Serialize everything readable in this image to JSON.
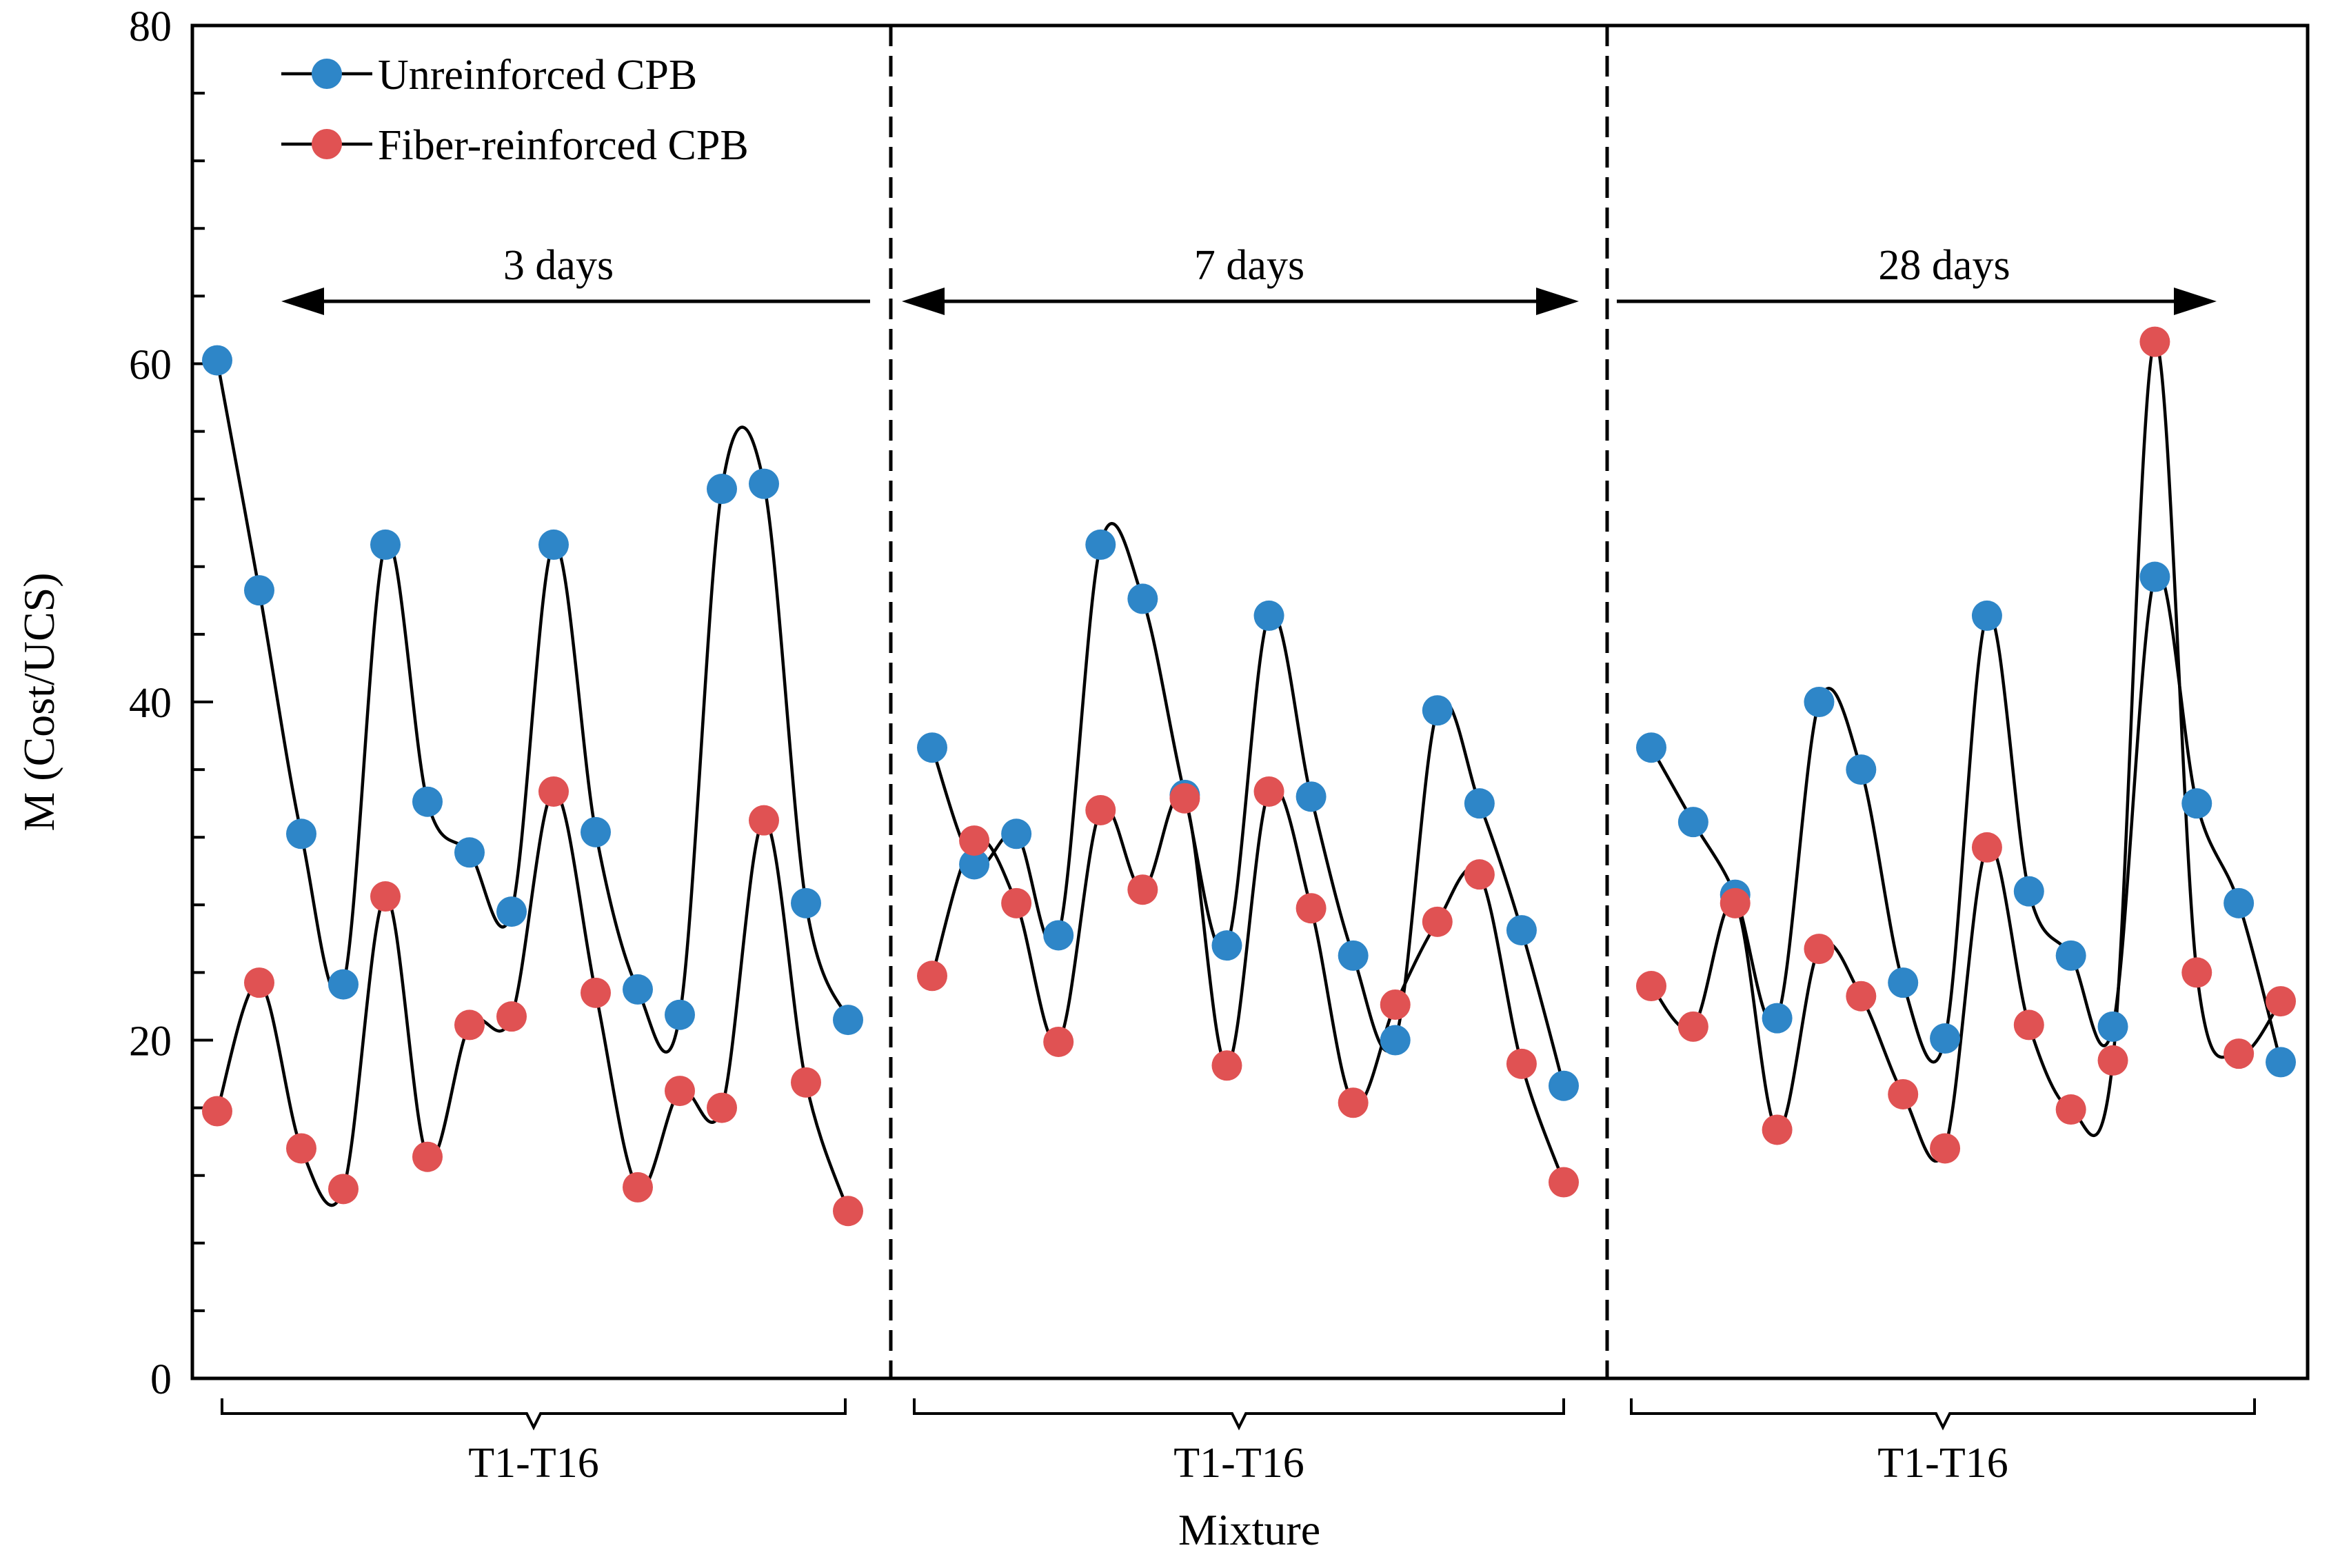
{
  "chart_data": {
    "type": "line",
    "title": "",
    "xlabel": "Mixture",
    "ylabel": "M (Cost/UCS)",
    "ylim": [
      0,
      80
    ],
    "y_ticks": [
      0,
      20,
      40,
      60,
      80
    ],
    "y_minor_step": 4,
    "grid": false,
    "legend_position": "top-left",
    "panels": [
      {
        "label": "3 days",
        "group_label": "T1-T16"
      },
      {
        "label": "7 days",
        "group_label": "T1-T16"
      },
      {
        "label": "28 days",
        "group_label": "T1-T16"
      }
    ],
    "series": [
      {
        "name": "Unreinforced CPB",
        "color": "#2e86c8",
        "values": [
          [
            60.2,
            46.6,
            32.2,
            23.3,
            49.3,
            34.1,
            31.1,
            27.6,
            49.3,
            32.3,
            23.0,
            21.5,
            52.6,
            52.9,
            28.1,
            21.2
          ],
          [
            37.3,
            30.4,
            32.2,
            26.2,
            49.3,
            46.1,
            34.5,
            25.6,
            45.1,
            34.4,
            25.0,
            20.0,
            39.5,
            34.0,
            26.5,
            17.3
          ],
          [
            37.3,
            32.9,
            28.6,
            21.3,
            40.0,
            36.0,
            23.4,
            20.1,
            45.1,
            28.8,
            25.0,
            20.8,
            47.4,
            34.0,
            28.1,
            18.7
          ]
        ]
      },
      {
        "name": "Fiber-reinforced CPB",
        "color": "#e05253",
        "values": [
          [
            15.8,
            23.4,
            13.6,
            11.2,
            28.5,
            13.1,
            20.9,
            21.4,
            34.7,
            22.8,
            11.3,
            17.0,
            16.0,
            33.0,
            17.5,
            9.9
          ],
          [
            23.8,
            31.8,
            28.1,
            19.9,
            33.6,
            28.9,
            34.3,
            18.5,
            34.7,
            27.8,
            16.3,
            22.1,
            27.0,
            29.8,
            18.6,
            11.6
          ],
          [
            23.2,
            20.8,
            28.1,
            14.7,
            25.4,
            22.6,
            16.8,
            13.6,
            31.4,
            20.9,
            15.9,
            18.8,
            61.3,
            24.0,
            19.2,
            22.3
          ]
        ]
      }
    ]
  }
}
